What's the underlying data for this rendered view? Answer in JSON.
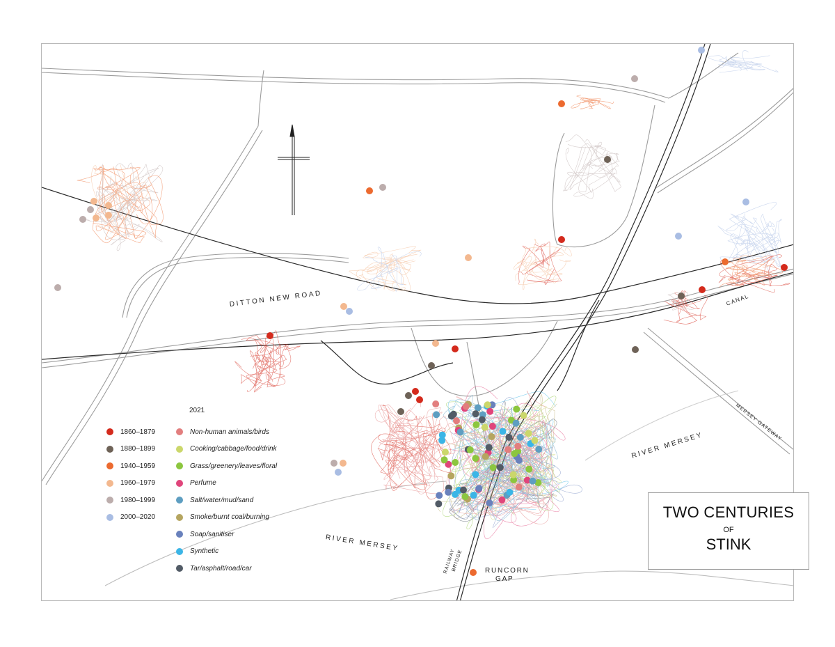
{
  "title": {
    "line1": "TWO CENTURIES",
    "line2": "OF",
    "line3": "STINK"
  },
  "place_labels": {
    "ditton_new_road": "DITTON NEW ROAD",
    "river_mersey_east": "RIVER MERSEY",
    "river_mersey_west": "RIVER MERSEY",
    "canal": "CANAL",
    "mersey_gateway": "MERSEY GATEWAY",
    "railway": "RAILWAY",
    "bridge": "BRIDGE",
    "runcorn": "RUNCORN",
    "gap": "GAP"
  },
  "legend": {
    "heading": "2021",
    "years": [
      {
        "label": "1860–1879",
        "color": "#d42a1c"
      },
      {
        "label": "1880–1899",
        "color": "#6e6257"
      },
      {
        "label": "1940–1959",
        "color": "#ec6a2f"
      },
      {
        "label": "1960–1979",
        "color": "#f3b88f"
      },
      {
        "label": "1980–1999",
        "color": "#bcadac"
      },
      {
        "label": "2000–2020",
        "color": "#a9bde3"
      }
    ],
    "categories": [
      {
        "label": "Non-human animals/birds",
        "color": "#e27e7e"
      },
      {
        "label": "Cooking/cabbage/food/drink",
        "color": "#cbd76b"
      },
      {
        "label": "Grass/greenery/leaves/floral",
        "color": "#8cc63f"
      },
      {
        "label": "Perfume",
        "color": "#e0457b"
      },
      {
        "label": "Salt/water/mud/sand",
        "color": "#5e9ec1"
      },
      {
        "label": "Smoke/burnt coal/burning",
        "color": "#b5a560"
      },
      {
        "label": "Soap/sanitiser",
        "color": "#6981bc"
      },
      {
        "label": "Synthetic",
        "color": "#3bb5e6"
      },
      {
        "label": "Tar/asphalt/road/car",
        "color": "#525b66"
      }
    ]
  },
  "map": {
    "north_arrow_icon": "north-arrow-icon",
    "colors": {
      "road": "#9c9c9c",
      "rail": "#2b2b2b",
      "frame": "#b9b9b9"
    }
  }
}
